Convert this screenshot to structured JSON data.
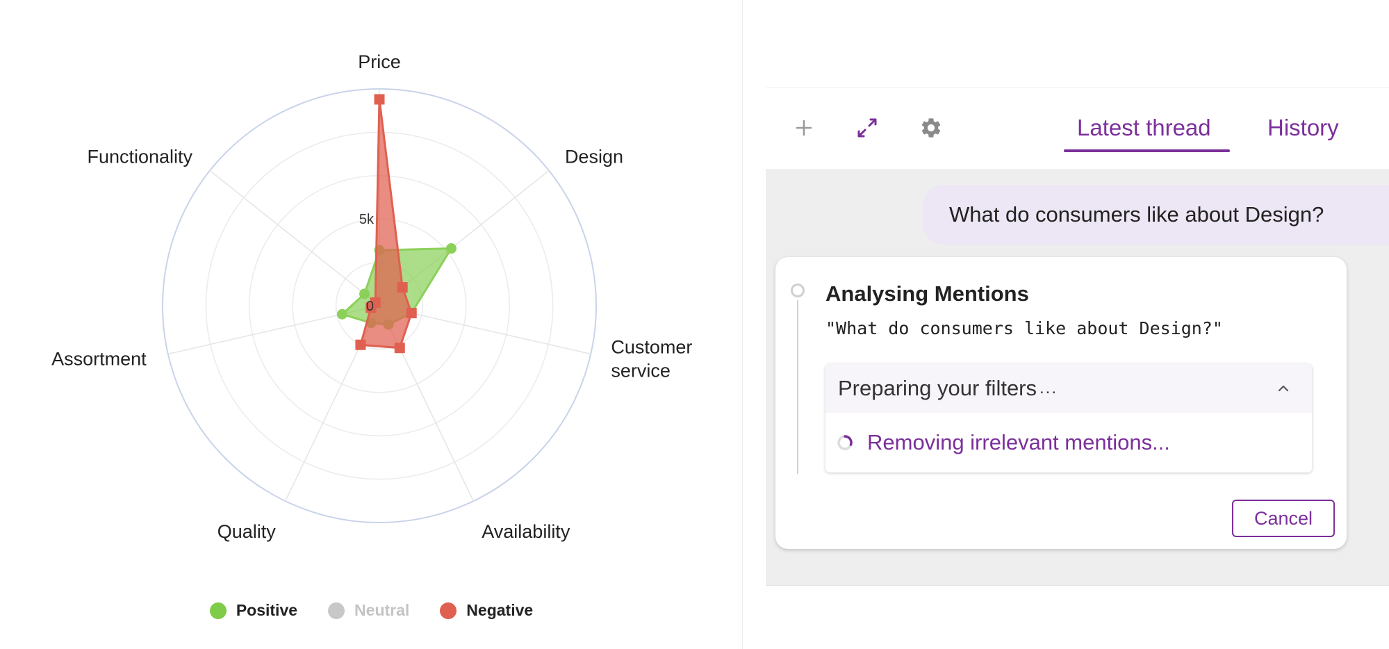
{
  "chart_data": {
    "type": "radar",
    "axes": [
      "Price",
      "Design",
      "Customer service",
      "Availability",
      "Quality",
      "Assortment",
      "Functionality"
    ],
    "axis_label_lines": [
      [
        "Price"
      ],
      [
        "Design"
      ],
      [
        "Customer",
        "service"
      ],
      [
        "Availability"
      ],
      [
        "Quality"
      ],
      [
        "Assortment"
      ],
      [
        "Functionality"
      ]
    ],
    "ticks": [
      {
        "label": "0",
        "value": 0
      },
      {
        "label": "5k",
        "value": 5000
      }
    ],
    "rmax": 12500,
    "grid_rings": [
      0,
      2500,
      5000,
      7500,
      10000,
      12500
    ],
    "series": [
      {
        "name": "Positive",
        "color": "#8cd05a",
        "visible": true,
        "marker": "circle",
        "values": [
          3200,
          5300,
          1900,
          1200,
          1100,
          2200,
          1100
        ]
      },
      {
        "name": "Neutral",
        "color": "#c8c8c8",
        "visible": false,
        "marker": "circle",
        "values": [
          0,
          0,
          0,
          0,
          0,
          0,
          0
        ]
      },
      {
        "name": "Negative",
        "color": "#e06050",
        "visible": true,
        "marker": "square",
        "values": [
          11900,
          1700,
          1900,
          2700,
          2500,
          500,
          300
        ]
      }
    ],
    "legend": "bottom-center"
  },
  "legend": {
    "items": [
      {
        "label": "Positive",
        "color": "#7fcb4a",
        "active": true
      },
      {
        "label": "Neutral",
        "color": "#c8c8c8",
        "active": false
      },
      {
        "label": "Negative",
        "color": "#e0604f",
        "active": true
      }
    ]
  },
  "toolbar": {
    "icons": [
      "plus-icon",
      "expand-icon",
      "gear-icon"
    ],
    "tab_latest": "Latest thread",
    "tab_history": "History"
  },
  "thread": {
    "user_message": "What do consumers like about Design?",
    "card_title": "Analysing Mentions",
    "card_query": "\"What do consumers like about Design?\"",
    "filters_title": "Preparing your filters",
    "filters_dots": "...",
    "status_text": "Removing irrelevant mentions...",
    "cancel_label": "Cancel"
  },
  "colors": {
    "accent": "#7b2f9b",
    "bubble": "#ede6f4",
    "thread_bg": "#eeeeee"
  }
}
